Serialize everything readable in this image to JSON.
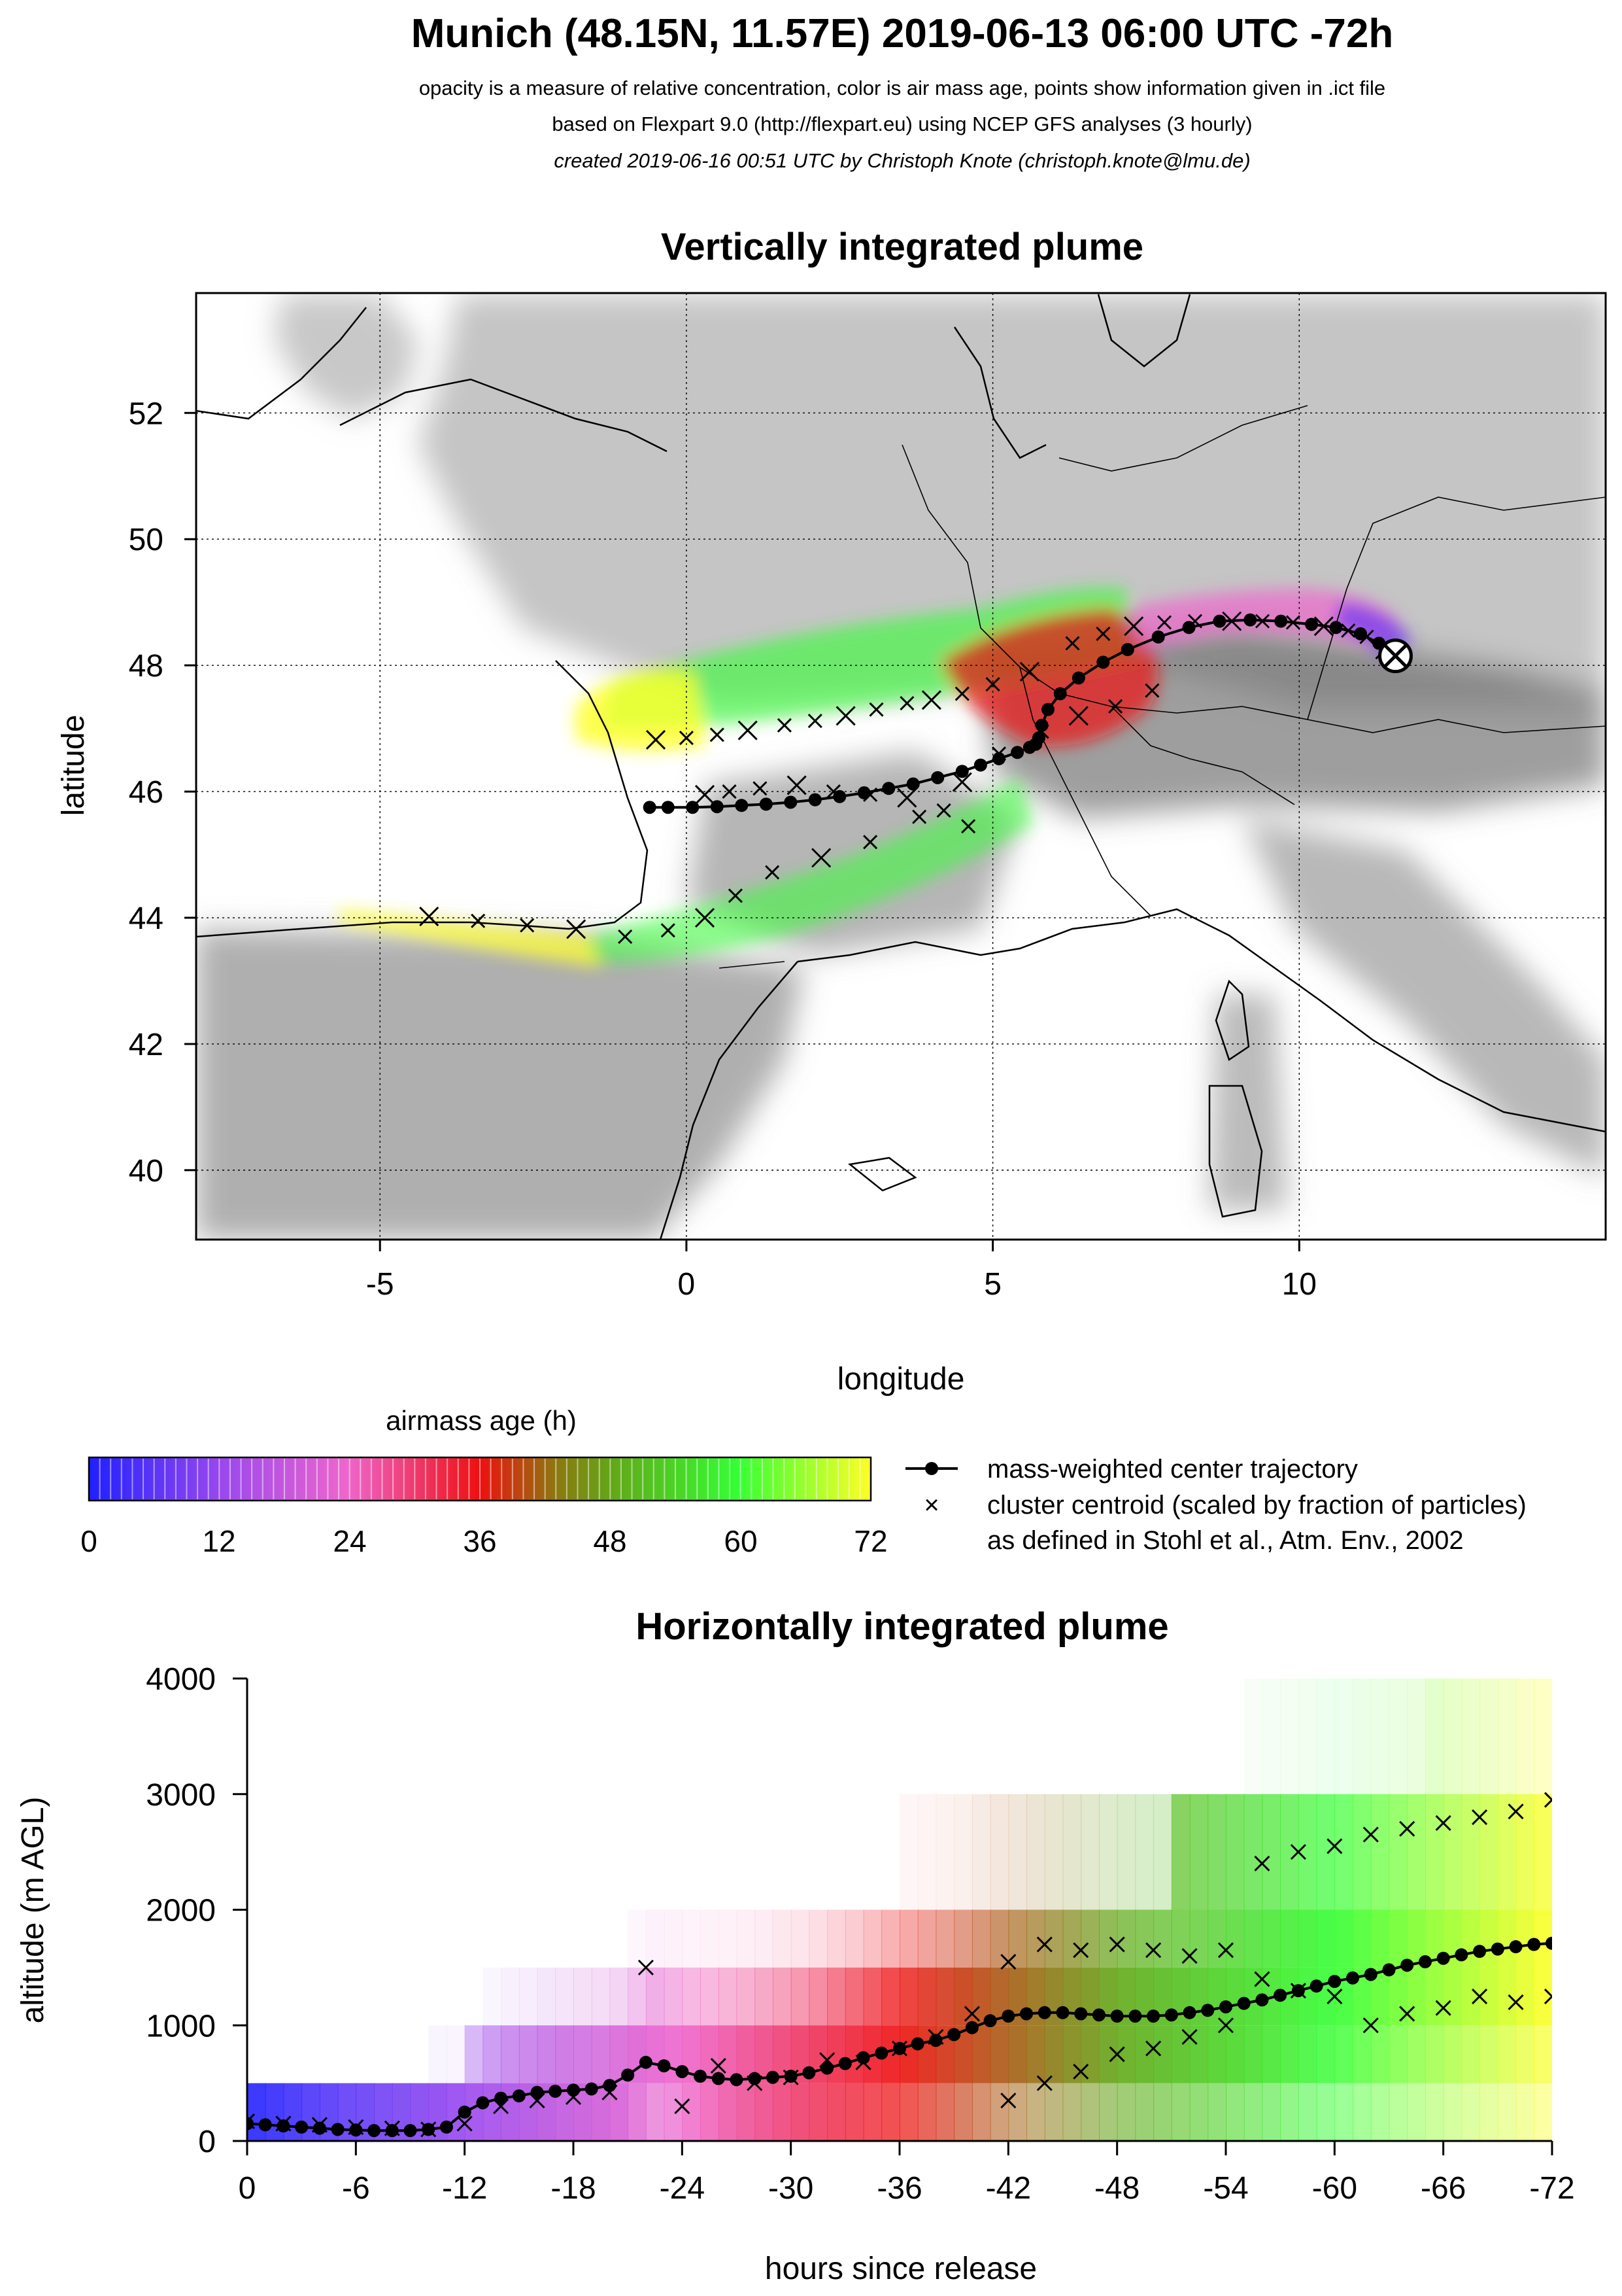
{
  "header": {
    "title": "Munich (48.15N, 11.57E) 2019-06-13 06:00 UTC -72h",
    "line1": "opacity is a measure of relative concentration, color is air mass age, points show information given in .ict file",
    "line2": "based on Flexpart 9.0 (http://flexpart.eu) using NCEP GFS analyses (3 hourly)",
    "line3": "created 2019-06-16 00:51 UTC by Christoph Knote (christoph.knote@lmu.de)"
  },
  "colors": {
    "age_0": "#2020ff",
    "age_12": "#9a48ee",
    "age_24": "#ee66cc",
    "age_36": "#ee1010",
    "age_48": "#62a818",
    "age_60": "#34ff34",
    "age_72": "#ffff26",
    "terrain": "#8c8c8c"
  },
  "chart_data": [
    {
      "type": "scatter",
      "title": "Vertically integrated plume",
      "xlabel": "longitude",
      "ylabel": "latitude",
      "xlim": [
        -8,
        15
      ],
      "ylim": [
        38.9,
        53.9
      ],
      "xticks": [
        -5,
        0,
        5,
        10
      ],
      "yticks": [
        40,
        42,
        44,
        46,
        48,
        50,
        52
      ],
      "grid": true,
      "release_point": {
        "lon": 11.57,
        "lat": 48.15
      },
      "series": [
        {
          "name": "mass-weighted center trajectory",
          "lon": [
            11.57,
            11.3,
            11.0,
            10.6,
            10.2,
            9.7,
            9.2,
            8.7,
            8.2,
            7.7,
            7.2,
            6.8,
            6.4,
            6.1,
            5.9,
            5.8,
            5.75,
            5.7,
            5.6,
            5.4,
            5.1,
            4.8,
            4.5,
            4.1,
            3.7,
            3.3,
            2.9,
            2.5,
            2.1,
            1.7,
            1.3,
            0.9,
            0.5,
            0.1,
            -0.3,
            -0.6
          ],
          "lat": [
            48.15,
            48.35,
            48.5,
            48.6,
            48.65,
            48.7,
            48.72,
            48.7,
            48.6,
            48.45,
            48.25,
            48.05,
            47.8,
            47.55,
            47.3,
            47.05,
            46.85,
            46.75,
            46.7,
            46.62,
            46.52,
            46.42,
            46.32,
            46.22,
            46.12,
            46.05,
            45.98,
            45.92,
            45.87,
            45.83,
            45.8,
            45.78,
            45.76,
            45.75,
            45.75,
            45.75
          ]
        },
        {
          "name": "cluster centroid (scaled by fraction of particles)",
          "lon": [
            11.4,
            11.1,
            10.8,
            10.4,
            9.9,
            9.4,
            8.9,
            8.3,
            7.8,
            7.3,
            6.8,
            6.3,
            5.6,
            5.0,
            4.5,
            4.0,
            3.6,
            3.1,
            2.6,
            2.1,
            1.6,
            1.0,
            0.5,
            0.0,
            -0.5,
            7.6,
            7.0,
            6.4,
            5.8,
            5.1,
            4.5,
            3.8,
            3.0,
            2.2,
            1.4,
            0.8,
            0.3,
            -0.3,
            -1.0,
            -1.8,
            -2.6,
            -3.4,
            -4.2,
            4.6,
            4.2,
            3.6,
            3.0,
            2.4,
            1.8,
            1.2,
            0.7,
            0.3
          ],
          "lat": [
            48.25,
            48.45,
            48.55,
            48.62,
            48.68,
            48.7,
            48.7,
            48.7,
            48.68,
            48.62,
            48.5,
            48.35,
            47.9,
            47.7,
            47.55,
            47.45,
            47.4,
            47.3,
            47.2,
            47.12,
            47.05,
            46.97,
            46.9,
            46.85,
            46.82,
            47.6,
            47.35,
            47.2,
            46.95,
            46.6,
            46.15,
            45.6,
            45.2,
            44.95,
            44.72,
            44.35,
            44.0,
            43.8,
            43.7,
            43.82,
            43.88,
            43.95,
            44.02,
            45.45,
            45.7,
            45.9,
            45.95,
            46.0,
            46.1,
            46.05,
            46.0,
            45.95
          ]
        }
      ]
    },
    {
      "type": "line",
      "title": "Horizontally integrated plume",
      "xlabel": "hours since release",
      "ylabel": "altitude (m AGL)",
      "xlim": [
        0,
        -72
      ],
      "ylim": [
        0,
        4000
      ],
      "xticks": [
        0,
        -6,
        -12,
        -18,
        -24,
        -30,
        -36,
        -42,
        -48,
        -54,
        -60,
        -66,
        -72
      ],
      "yticks": [
        0,
        1000,
        2000,
        3000,
        4000
      ],
      "series": [
        {
          "name": "mass-weighted center trajectory",
          "x": [
            0,
            -1,
            -2,
            -3,
            -4,
            -5,
            -6,
            -7,
            -8,
            -9,
            -10,
            -11,
            -12,
            -13,
            -14,
            -15,
            -16,
            -17,
            -18,
            -19,
            -20,
            -21,
            -22,
            -23,
            -24,
            -25,
            -26,
            -27,
            -28,
            -29,
            -30,
            -31,
            -32,
            -33,
            -34,
            -35,
            -36,
            -37,
            -38,
            -39,
            -40,
            -41,
            -42,
            -43,
            -44,
            -45,
            -46,
            -47,
            -48,
            -49,
            -50,
            -51,
            -52,
            -53,
            -54,
            -55,
            -56,
            -57,
            -58,
            -59,
            -60,
            -61,
            -62,
            -63,
            -64,
            -65,
            -66,
            -67,
            -68,
            -69,
            -70,
            -71,
            -72
          ],
          "y": [
            150,
            140,
            130,
            120,
            110,
            100,
            95,
            90,
            90,
            90,
            100,
            120,
            250,
            330,
            370,
            390,
            420,
            430,
            440,
            450,
            480,
            570,
            680,
            650,
            600,
            560,
            540,
            530,
            540,
            550,
            560,
            590,
            630,
            670,
            720,
            760,
            800,
            840,
            870,
            920,
            980,
            1040,
            1080,
            1100,
            1110,
            1110,
            1100,
            1090,
            1080,
            1080,
            1080,
            1090,
            1110,
            1130,
            1160,
            1190,
            1220,
            1260,
            1300,
            1340,
            1380,
            1410,
            1440,
            1480,
            1520,
            1550,
            1580,
            1610,
            1640,
            1660,
            1680,
            1700,
            1710
          ]
        },
        {
          "name": "cluster centroid (scaled by fraction of particles)",
          "x": [
            0,
            -2,
            -4,
            -6,
            -8,
            -10,
            -12,
            -14,
            -16,
            -18,
            -20,
            -22,
            -24,
            -26,
            -28,
            -30,
            -32,
            -34,
            -36,
            -38,
            -40,
            -42,
            -44,
            -46,
            -48,
            -50,
            -52,
            -54,
            -56,
            -58,
            -60,
            -62,
            -64,
            -66,
            -68,
            -70,
            -72,
            -42,
            -44,
            -46,
            -48,
            -50,
            -52,
            -54,
            -56,
            -58,
            -60,
            -62,
            -64,
            -66,
            -68,
            -70,
            -72
          ],
          "y": [
            170,
            150,
            140,
            120,
            110,
            100,
            150,
            300,
            350,
            380,
            420,
            1500,
            300,
            650,
            500,
            550,
            700,
            680,
            800,
            900,
            1100,
            1550,
            1700,
            1650,
            1700,
            1650,
            1600,
            1650,
            1400,
            1300,
            1250,
            1000,
            1100,
            1150,
            1250,
            1200,
            1250,
            350,
            500,
            600,
            750,
            800,
            900,
            1000,
            2400,
            2500,
            2550,
            2650,
            2700,
            2750,
            2800,
            2850,
            2950
          ]
        }
      ]
    }
  ],
  "legend": {
    "colorbar_title": "airmass age (h)",
    "colorbar_ticks": [
      "0",
      "12",
      "24",
      "36",
      "48",
      "60",
      "72"
    ],
    "line_label": "mass-weighted center trajectory",
    "cross_label": "cluster centroid (scaled by fraction of particles)",
    "cross_note": "as defined in Stohl et al., Atm. Env., 2002"
  }
}
